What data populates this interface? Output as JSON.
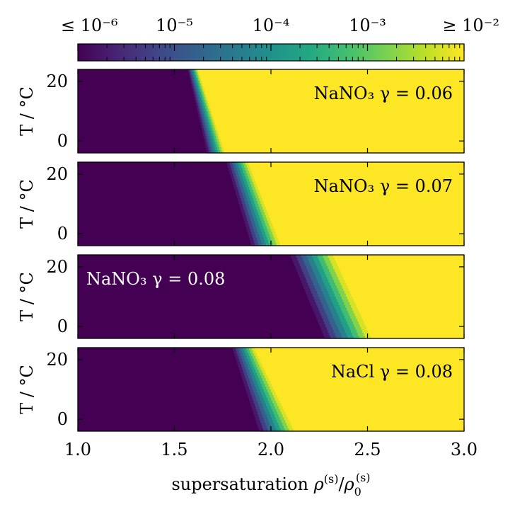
{
  "chart_data": {
    "type": "heatmap",
    "xlabel": "supersaturation ρ(s)/ρ0(s)",
    "ylabel": "T / °C",
    "xlim": [
      1.0,
      3.0
    ],
    "ylim": [
      -4,
      24
    ],
    "x_ticks": [
      "1.0",
      "1.5",
      "2.0",
      "2.5",
      "3.0"
    ],
    "y_ticks": [
      "0",
      "20"
    ],
    "colormap": "viridis",
    "colorbar": {
      "scale": "log",
      "range": [
        1e-06,
        0.01
      ],
      "tick_labels": [
        "≤ 10⁻⁶",
        "10⁻⁵",
        "10⁻⁴",
        "10⁻³",
        "≥ 10⁻²"
      ],
      "position": "top"
    },
    "colors": {
      "low": "#440154",
      "high": "#fde725"
    },
    "panels": [
      {
        "label": "NaNO₃ γ = 0.06",
        "label_color": "#000000",
        "label_position": "top-right",
        "transition": {
          "T": [
            24,
            -4
          ],
          "start": [
            1.57,
            1.67
          ],
          "end": [
            1.62,
            1.76
          ]
        }
      },
      {
        "label": "NaNO₃ γ = 0.07",
        "label_color": "#000000",
        "label_position": "top-right",
        "transition": {
          "T": [
            24,
            -4
          ],
          "start": [
            1.77,
            1.9
          ],
          "end": [
            1.88,
            2.05
          ]
        }
      },
      {
        "label": "NaNO₃ γ = 0.08",
        "label_color": "#ffffff",
        "label_position": "top-left",
        "transition": {
          "T": [
            24,
            -4
          ],
          "start": [
            2.1,
            2.28
          ],
          "end": [
            2.32,
            2.52
          ]
        }
      },
      {
        "label": "NaCl γ = 0.08",
        "label_color": "#000000",
        "label_position": "top-right",
        "transition": {
          "T": [
            24,
            -4
          ],
          "start": [
            1.8,
            1.94
          ],
          "end": [
            1.91,
            2.12
          ]
        }
      }
    ]
  }
}
